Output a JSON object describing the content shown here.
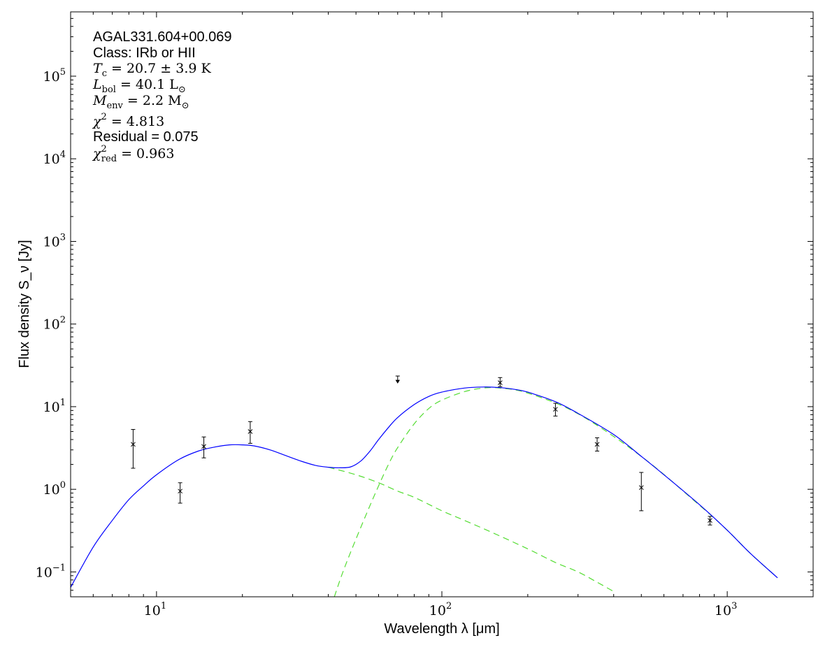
{
  "chart_data": {
    "type": "line",
    "x_scale": "log",
    "y_scale": "log",
    "xlim": [
      5,
      2000
    ],
    "ylim": [
      0.05,
      600000
    ],
    "grid": false,
    "xlabel": "Wavelength λ [μm]",
    "ylabel": "Flux density S_ν [Jy]",
    "x_ticks": [
      {
        "base": "10",
        "exp": "1",
        "value": 10
      },
      {
        "base": "10",
        "exp": "2",
        "value": 100
      },
      {
        "base": "10",
        "exp": "3",
        "value": 1000
      }
    ],
    "y_ticks": [
      {
        "base": "10",
        "exp": "−1",
        "value": 0.1
      },
      {
        "base": "10",
        "exp": "0",
        "value": 1
      },
      {
        "base": "10",
        "exp": "1",
        "value": 10
      },
      {
        "base": "10",
        "exp": "2",
        "value": 100
      },
      {
        "base": "10",
        "exp": "3",
        "value": 1000
      },
      {
        "base": "10",
        "exp": "4",
        "value": 10000
      },
      {
        "base": "10",
        "exp": "5",
        "value": 100000
      }
    ],
    "annotations": {
      "source_name": "AGAL331.604+00.069",
      "class_label": "Class: IRb or HII",
      "tc": {
        "sym": "T",
        "sub": "c",
        "rest": " = 20.7 ± 3.9 K"
      },
      "lbol": {
        "sym": "L",
        "sub": "bol",
        "rest": " = 40.1 L",
        "sun": "⊙"
      },
      "menv": {
        "sym": "M",
        "sub": "env",
        "rest": " = 2.2 M",
        "sun": "⊙"
      },
      "chi2": {
        "sym": "χ",
        "sup": "2",
        "rest": " = 4.813"
      },
      "residual": "Residual = 0.075",
      "chi2red": {
        "sym": "χ",
        "sup": "2",
        "sub": "red",
        "rest": " = 0.963"
      }
    },
    "series": [
      {
        "role": "total_fit",
        "color": "#0000ff",
        "style": "solid",
        "x": [
          5,
          6,
          7,
          8,
          9,
          10,
          12,
          14,
          16,
          18,
          20,
          22,
          25,
          28,
          32,
          36,
          40,
          44,
          48,
          52,
          56,
          60,
          65,
          70,
          80,
          90,
          100,
          120,
          140,
          160,
          180,
          200,
          250,
          300,
          400,
          500,
          600,
          800,
          1000,
          1200,
          1500
        ],
        "y": [
          0.065,
          0.2,
          0.42,
          0.75,
          1.1,
          1.5,
          2.3,
          2.9,
          3.25,
          3.45,
          3.45,
          3.35,
          3.0,
          2.6,
          2.2,
          1.95,
          1.85,
          1.82,
          1.87,
          2.2,
          2.9,
          4.0,
          5.6,
          7.4,
          10.6,
          13.3,
          15.0,
          16.8,
          17.3,
          17.0,
          16.2,
          15.0,
          11.5,
          8.3,
          4.6,
          2.5,
          1.5,
          0.65,
          0.32,
          0.17,
          0.085
        ]
      },
      {
        "role": "warm_component",
        "color": "#55dd33",
        "style": "dashed",
        "x": [
          40,
          50,
          60,
          70,
          80,
          100,
          120,
          150,
          200,
          250,
          300,
          350,
          400
        ],
        "y": [
          1.85,
          1.5,
          1.2,
          0.95,
          0.8,
          0.55,
          0.42,
          0.3,
          0.19,
          0.13,
          0.1,
          0.075,
          0.058
        ]
      },
      {
        "role": "cold_component",
        "color": "#55dd33",
        "style": "dashed",
        "x": [
          42,
          45,
          50,
          55,
          60,
          65,
          70,
          80,
          90,
          100,
          120,
          140,
          160,
          200,
          300,
          500,
          800,
          1000,
          1200,
          1500
        ],
        "y": [
          0.05,
          0.1,
          0.25,
          0.55,
          1.1,
          2.0,
          3.2,
          6.2,
          9.5,
          12.0,
          15.2,
          16.8,
          16.8,
          14.6,
          8.2,
          2.5,
          0.64,
          0.32,
          0.17,
          0.085
        ]
      }
    ],
    "data_points": [
      {
        "x": 8.28,
        "y": 3.5,
        "ylo": 1.8,
        "yhi": 5.3
      },
      {
        "x": 12.1,
        "y": 0.95,
        "ylo": 0.68,
        "yhi": 1.2
      },
      {
        "x": 14.65,
        "y": 3.3,
        "ylo": 2.4,
        "yhi": 4.3
      },
      {
        "x": 21.3,
        "y": 5.0,
        "ylo": 3.6,
        "yhi": 6.6
      },
      {
        "x": 160,
        "y": 19.5,
        "ylo": 17.5,
        "yhi": 22.5
      },
      {
        "x": 250,
        "y": 9.3,
        "ylo": 7.7,
        "yhi": 11.0
      },
      {
        "x": 350,
        "y": 3.5,
        "ylo": 2.9,
        "yhi": 4.2
      },
      {
        "x": 500,
        "y": 1.05,
        "ylo": 0.55,
        "yhi": 1.6
      },
      {
        "x": 870,
        "y": 0.42,
        "ylo": 0.37,
        "yhi": 0.47
      }
    ],
    "upper_limits": [
      {
        "x": 70,
        "y": 23.5
      }
    ]
  }
}
